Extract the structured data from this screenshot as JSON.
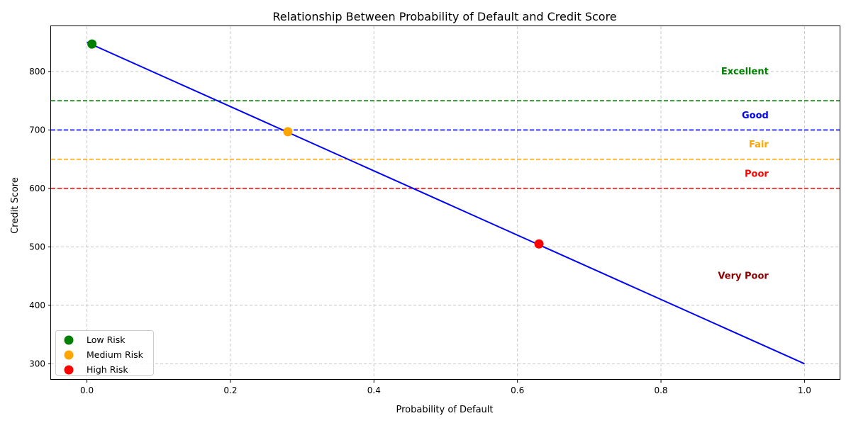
{
  "chart_data": {
    "type": "scatter",
    "title": "Relationship Between Probability of Default and Credit Score",
    "xlabel": "Probability of Default",
    "ylabel": "Credit Score",
    "xlim": [
      -0.05,
      1.05
    ],
    "ylim": [
      272.5,
      877.5
    ],
    "xticks": [
      0.0,
      0.2,
      0.4,
      0.6,
      0.8,
      1.0
    ],
    "xtick_labels": [
      "0.0",
      "0.2",
      "0.4",
      "0.6",
      "0.8",
      "1.0"
    ],
    "yticks": [
      300,
      400,
      500,
      600,
      700,
      800
    ],
    "ytick_labels": [
      "300",
      "400",
      "500",
      "600",
      "700",
      "800"
    ],
    "grid": true,
    "trend_line": {
      "x": [
        0.0,
        1.0
      ],
      "y": [
        850,
        300
      ],
      "color": "#0000ff"
    },
    "series": [
      {
        "name": "Low Risk",
        "color": "#008000",
        "x": [
          0.007
        ],
        "y": [
          847
        ]
      },
      {
        "name": "Medium Risk",
        "color": "#ffa500",
        "x": [
          0.28
        ],
        "y": [
          697
        ]
      },
      {
        "name": "High Risk",
        "color": "#ff0000",
        "x": [
          0.63
        ],
        "y": [
          505
        ]
      }
    ],
    "thresholds": [
      {
        "value": 750,
        "color": "#008000"
      },
      {
        "value": 700,
        "color": "#0000ff"
      },
      {
        "value": 650,
        "color": "#ffa500"
      },
      {
        "value": 600,
        "color": "#ff0000"
      }
    ],
    "band_labels": [
      {
        "text": "Excellent",
        "x": 0.95,
        "y": 800,
        "color": "#008000"
      },
      {
        "text": "Good",
        "x": 0.95,
        "y": 725,
        "color": "#0000ff"
      },
      {
        "text": "Fair",
        "x": 0.95,
        "y": 675,
        "color": "#ffa500"
      },
      {
        "text": "Poor",
        "x": 0.95,
        "y": 625,
        "color": "#ff0000"
      },
      {
        "text": "Very Poor",
        "x": 0.95,
        "y": 450,
        "color": "#8b0000"
      }
    ],
    "legend": {
      "placement": "lower-left",
      "entries": [
        "Low Risk",
        "Medium Risk",
        "High Risk"
      ]
    }
  }
}
